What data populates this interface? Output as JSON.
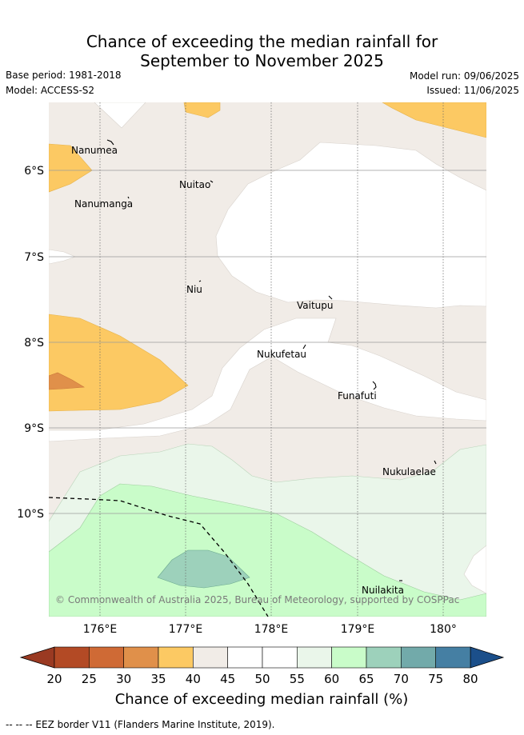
{
  "title_line1": "Chance of exceeding the median rainfall for",
  "title_line2": "September to November 2025",
  "base_period": "Base period: 1981-2018",
  "model": "Model: ACCESS-S2",
  "model_run": "Model run: 09/06/2025",
  "issued": "Issued: 11/06/2025",
  "copyright": "© Commonwealth of Australia 2025, Bureau of Meteorology, supported by COSPPac",
  "footer": "-- -- -- EEZ border V11 (Flanders Marine Institute, 2019).",
  "places": [
    "Nanumea",
    "Nuitao",
    "Nanumanga",
    "Niu",
    "Vaitupu",
    "Nukufetau",
    "Funafuti",
    "Nukulaelae",
    "Nuilakita"
  ],
  "lat_labels": [
    "6°S",
    "7°S",
    "8°S",
    "9°S",
    "10°S"
  ],
  "lon_labels": [
    "176°E",
    "177°E",
    "178°E",
    "179°E",
    "180°"
  ],
  "colorbar": {
    "title": "Chance of exceeding median rainfall (%)",
    "ticks": [
      "20",
      "25",
      "30",
      "35",
      "40",
      "45",
      "50",
      "55",
      "60",
      "65",
      "70",
      "75",
      "80"
    ],
    "colors": [
      "#b34a25",
      "#cf6a35",
      "#e0904a",
      "#fcc963",
      "#f1ece7",
      "#ffffff",
      "#ffffff",
      "#eaf6ea",
      "#c9fcc9",
      "#9dd1bb",
      "#72aaaa",
      "#457fa3"
    ],
    "under_color": "#9a3a22",
    "over_color": "#1b4f8a"
  },
  "colors": {
    "neutral": "#f1ece7",
    "orange_light": "#fcc963",
    "orange_mid": "#e0904a",
    "green_light": "#eaf6ea",
    "green_mid": "#c9fcc9",
    "teal": "#9dd1bb"
  }
}
